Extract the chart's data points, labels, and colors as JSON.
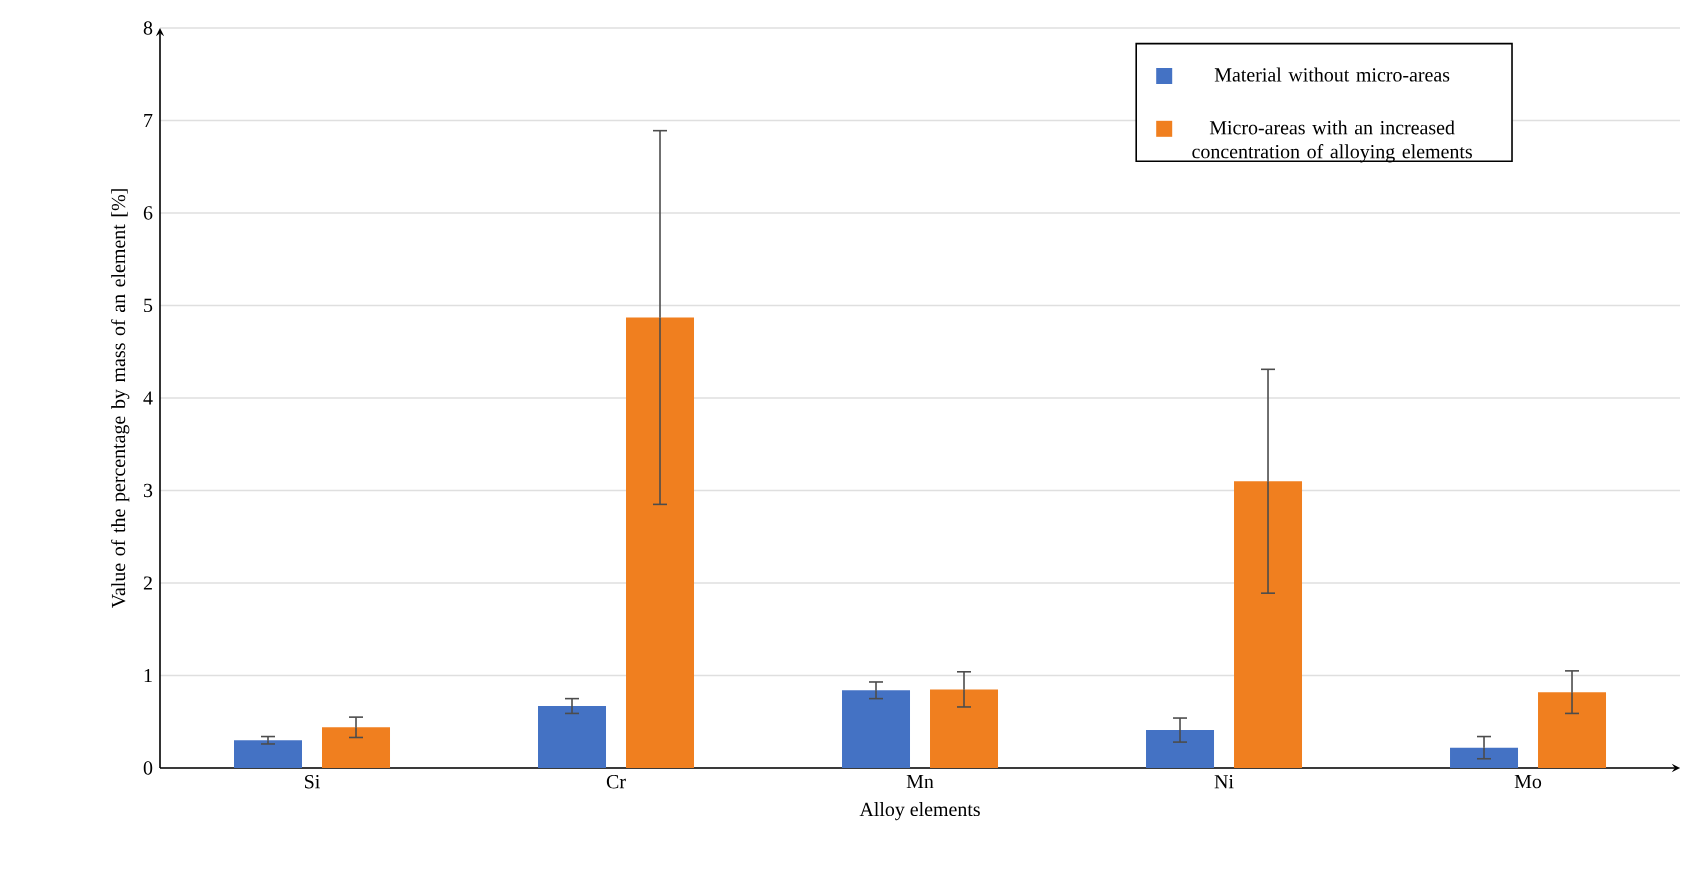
{
  "chart_data": {
    "type": "bar",
    "xlabel": "Alloy elements",
    "ylabel": "Value of the percentage by mass of an element [%]",
    "categories": [
      "Si",
      "Cr",
      "Mn",
      "Ni",
      "Mo"
    ],
    "series": [
      {
        "name": "Material without micro-areas",
        "color": "#4472c4",
        "values": [
          0.3,
          0.67,
          0.84,
          0.41,
          0.22
        ],
        "errors": [
          0.04,
          0.08,
          0.09,
          0.13,
          0.12
        ]
      },
      {
        "name": "Micro-areas with an increased concentration of alloying elements",
        "color": "#f07f1f",
        "values": [
          0.44,
          4.87,
          0.85,
          3.1,
          0.82
        ],
        "errors": [
          0.11,
          2.02,
          0.19,
          1.21,
          0.23
        ]
      }
    ],
    "ylim": [
      0,
      8
    ],
    "yticks": [
      0,
      1,
      2,
      3,
      4,
      5,
      6,
      7,
      8
    ],
    "grid": "y",
    "legend": "top right"
  }
}
